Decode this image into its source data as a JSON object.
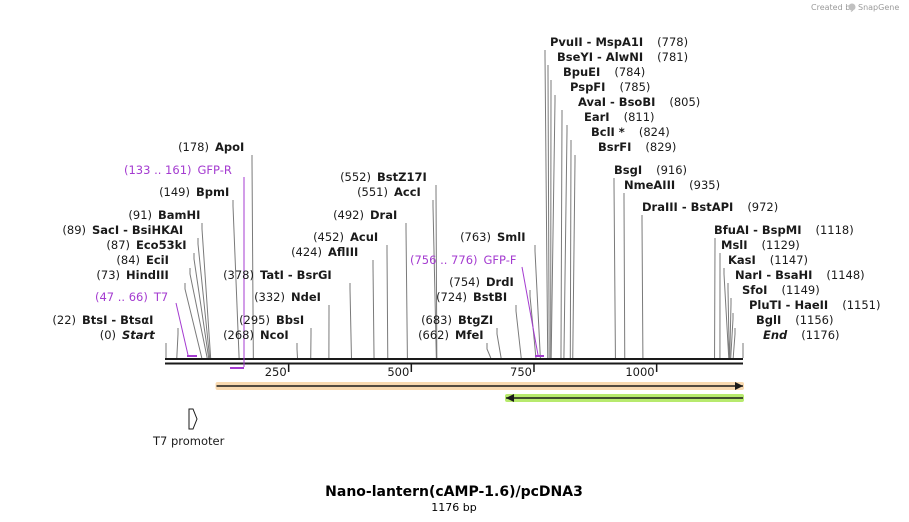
{
  "credit": "Created by",
  "brand": "SnapGene",
  "map": {
    "title": "Nano-lantern(cAMP-1.6)/pcDNA3",
    "length_label": "1176 bp",
    "total_bp": 1176,
    "ticks": [
      {
        "pos": 250,
        "label": "250"
      },
      {
        "pos": 500,
        "label": "500"
      },
      {
        "pos": 750,
        "label": "750"
      },
      {
        "pos": 1000,
        "label": "1000"
      }
    ]
  },
  "sites": [
    {
      "pos": 0,
      "pos_label": "(0)",
      "label": "Start",
      "style": "italic"
    },
    {
      "pos": 22,
      "pos_label": "(22)",
      "label": "BtsI  -  BtsαI"
    },
    {
      "pos": 73,
      "pos_label": "(73)",
      "label": "HindIII"
    },
    {
      "pos": 84,
      "pos_label": "(84)",
      "label": "EciI"
    },
    {
      "pos": 87,
      "pos_label": "(87)",
      "label": "Eco53kI"
    },
    {
      "pos": 89,
      "pos_label": "(89)",
      "label": "SacI  -  BsiHKAI"
    },
    {
      "pos": 91,
      "pos_label": "(91)",
      "label": "BamHI"
    },
    {
      "pos": 149,
      "pos_label": "(149)",
      "label": "BpmI"
    },
    {
      "pos": 178,
      "pos_label": "(178)",
      "label": "ApoI"
    },
    {
      "pos": 268,
      "pos_label": "(268)",
      "label": "NcoI"
    },
    {
      "pos": 295,
      "pos_label": "(295)",
      "label": "BbsI"
    },
    {
      "pos": 332,
      "pos_label": "(332)",
      "label": "NdeI"
    },
    {
      "pos": 378,
      "pos_label": "(378)",
      "label": "TatI  -  BsrGI"
    },
    {
      "pos": 424,
      "pos_label": "(424)",
      "label": "AflIII"
    },
    {
      "pos": 452,
      "pos_label": "(452)",
      "label": "AcuI"
    },
    {
      "pos": 492,
      "pos_label": "(492)",
      "label": "DraI"
    },
    {
      "pos": 551,
      "pos_label": "(551)",
      "label": "AccI"
    },
    {
      "pos": 552,
      "pos_label": "(552)",
      "label": "BstZ17I"
    },
    {
      "pos": 662,
      "pos_label": "(662)",
      "label": "MfeI"
    },
    {
      "pos": 683,
      "pos_label": "(683)",
      "label": "BtgZI"
    },
    {
      "pos": 724,
      "pos_label": "(724)",
      "label": "BstBI"
    },
    {
      "pos": 754,
      "pos_label": "(754)",
      "label": "DrdI"
    },
    {
      "pos": 763,
      "pos_label": "(763)",
      "label": "SmlI"
    },
    {
      "pos": 778,
      "pos_label": "(778)",
      "label": "PvuII  -  MspA1I"
    },
    {
      "pos": 781,
      "pos_label": "(781)",
      "label": "BseYI  -  AlwNI"
    },
    {
      "pos": 784,
      "pos_label": "(784)",
      "label": "BpuEI"
    },
    {
      "pos": 785,
      "pos_label": "(785)",
      "label": "PspFI"
    },
    {
      "pos": 805,
      "pos_label": "(805)",
      "label": "AvaI  -  BsoBI"
    },
    {
      "pos": 811,
      "pos_label": "(811)",
      "label": "EarI"
    },
    {
      "pos": 824,
      "pos_label": "(824)",
      "label": "BclI *"
    },
    {
      "pos": 829,
      "pos_label": "(829)",
      "label": "BsrFI"
    },
    {
      "pos": 916,
      "pos_label": "(916)",
      "label": "BsgI"
    },
    {
      "pos": 935,
      "pos_label": "(935)",
      "label": "NmeAIII"
    },
    {
      "pos": 972,
      "pos_label": "(972)",
      "label": "DraIII  -  BstAPI"
    },
    {
      "pos": 1118,
      "pos_label": "(1118)",
      "label": "BfuAI  -  BspMI"
    },
    {
      "pos": 1129,
      "pos_label": "(1129)",
      "label": "MslI"
    },
    {
      "pos": 1147,
      "pos_label": "(1147)",
      "label": "KasI"
    },
    {
      "pos": 1148,
      "pos_label": "(1148)",
      "label": "NarI  -  BsaHI"
    },
    {
      "pos": 1149,
      "pos_label": "(1149)",
      "label": "SfoI"
    },
    {
      "pos": 1151,
      "pos_label": "(1151)",
      "label": "PluTI  -  HaeII"
    },
    {
      "pos": 1156,
      "pos_label": "(1156)",
      "label": "BglI"
    },
    {
      "pos": 1176,
      "pos_label": "(1176)",
      "label": "End",
      "style": "italic"
    }
  ],
  "primers": [
    {
      "label": "T7",
      "range_label": "(47 .. 66)",
      "start": 47,
      "end": 66
    },
    {
      "label": "GFP-R",
      "range_label": "(133 .. 161)",
      "start": 133,
      "end": 161
    },
    {
      "label": "GFP-F",
      "range_label": "(756 .. 776)",
      "start": 756,
      "end": 776
    }
  ],
  "features": [
    {
      "name": "orf-forward",
      "start": 103,
      "end": 1176,
      "direction": "forward",
      "color": "#f5a623",
      "glow": "#f8d9b0"
    },
    {
      "name": "orf-reverse",
      "start": 693,
      "end": 1176,
      "direction": "reverse",
      "color": "#2e7d32",
      "glow": "#b7ea6d"
    },
    {
      "name": "T7 promoter",
      "start": 47,
      "end": 66,
      "direction": "forward",
      "color": "#ffffff"
    }
  ],
  "feature_labels": {
    "t7_promoter": "T7 promoter"
  },
  "colors": {
    "primer": "#a43bd0",
    "backbone": "#1a1a1a",
    "site_line": "#7a7a7a"
  }
}
